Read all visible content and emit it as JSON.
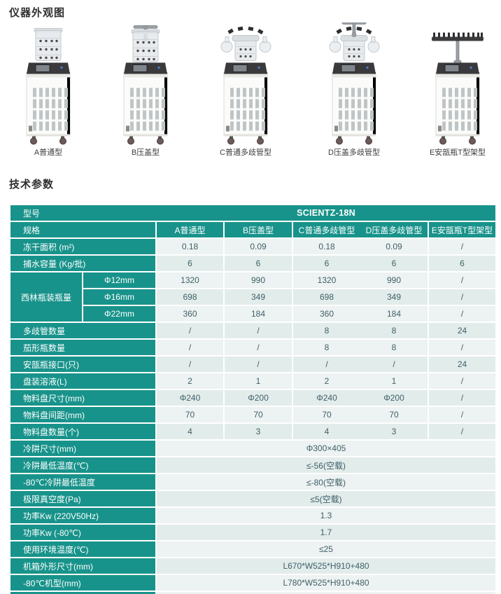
{
  "sections": {
    "appearance_title": "仪器外观图",
    "params_title": "技术参数"
  },
  "machines": [
    {
      "label": "A普通型",
      "type": "plain"
    },
    {
      "label": "B压盖型",
      "type": "press"
    },
    {
      "label": "C普通多歧管型",
      "type": "manifold"
    },
    {
      "label": "D压盖多歧管型",
      "type": "press-manifold"
    },
    {
      "label": "E安瓿瓶T型架型",
      "type": "t-rack"
    }
  ],
  "colors": {
    "teal": "#18938B",
    "row_light": "#EDF2F2",
    "row_dark": "#E2ECEB",
    "value_text": "#3F6068"
  },
  "table": {
    "model_row": {
      "label": "型号",
      "value": "SCIENTZ-18N"
    },
    "spec_row": {
      "label": "规格",
      "columns": [
        "A普通型",
        "B压盖型",
        "C普通多歧管型",
        "D压盖多歧管型",
        "E安瓿瓶T型架型"
      ]
    },
    "rows": [
      {
        "label": "冻干面积 (m²)",
        "values": [
          "0.18",
          "0.09",
          "0.18",
          "0.09",
          "/"
        ]
      },
      {
        "label": "捕水容量 (Kg/批)",
        "values": [
          "6",
          "6",
          "6",
          "6",
          "6"
        ]
      },
      {
        "group": "西林瓶装瓶量",
        "sub": "Φ12mm",
        "values": [
          "1320",
          "990",
          "1320",
          "990",
          "/"
        ]
      },
      {
        "sub": "Φ16mm",
        "values": [
          "698",
          "349",
          "698",
          "349",
          "/"
        ]
      },
      {
        "sub": "Φ22mm",
        "values": [
          "360",
          "184",
          "360",
          "184",
          "/"
        ]
      },
      {
        "label": "多歧管数量",
        "values": [
          "/",
          "/",
          "8",
          "8",
          "24"
        ]
      },
      {
        "label": "茄形瓶数量",
        "values": [
          "/",
          "/",
          "8",
          "8",
          "/"
        ]
      },
      {
        "label": "安瓿瓶接口(只)",
        "values": [
          "/",
          "/",
          "/",
          "/",
          "24"
        ]
      },
      {
        "label": "盘装溶液(L)",
        "values": [
          "2",
          "1",
          "2",
          "1",
          "/"
        ]
      },
      {
        "label": "物料盘尺寸(mm)",
        "values": [
          "Φ240",
          "Φ200",
          "Φ240",
          "Φ200",
          "/"
        ]
      },
      {
        "label": "物料盘间距(mm)",
        "values": [
          "70",
          "70",
          "70",
          "70",
          "/"
        ]
      },
      {
        "label": "物料盘数量(个)",
        "values": [
          "4",
          "3",
          "4",
          "3",
          "/"
        ]
      },
      {
        "label": "冷阱尺寸(mm)",
        "span": "Φ300×405"
      },
      {
        "label": "冷阱最低温度(℃)",
        "span": "≤-56(空载)"
      },
      {
        "label": "-80℃冷阱最低温度",
        "span": "≤-80(空载)"
      },
      {
        "label": "极限真空度(Pa)",
        "span": "≤5(空载)"
      },
      {
        "label": "功率Kw (220V50Hz)",
        "span": "1.3"
      },
      {
        "label": "功率Kw (-80℃)",
        "span": "1.7"
      },
      {
        "label": "使用环境温度(℃)",
        "span": "≤25"
      },
      {
        "label": "机箱外形尺寸(mm)",
        "span": "L670*W525*H910+480"
      },
      {
        "label": "-80℃机型(mm)",
        "span": "L780*W525*H910+480"
      }
    ]
  }
}
